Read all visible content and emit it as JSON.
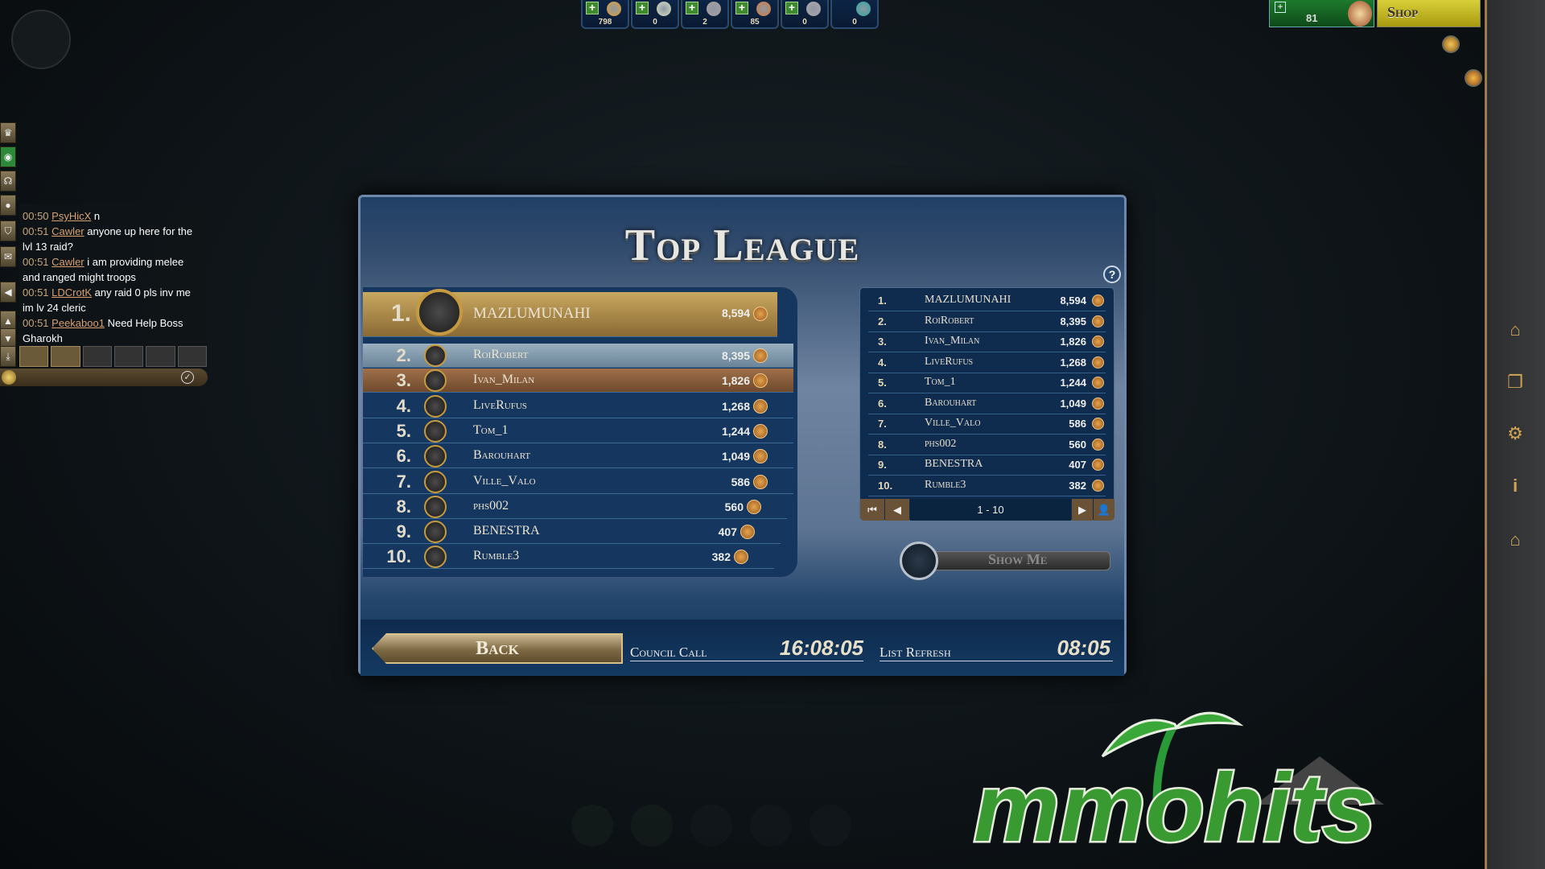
{
  "resources": [
    {
      "icon": "gold-coin-icon",
      "value": "798"
    },
    {
      "icon": "crystal-icon",
      "value": "0"
    },
    {
      "icon": "stone-icon",
      "value": "2"
    },
    {
      "icon": "wood-icon",
      "value": "85"
    },
    {
      "icon": "ore-icon",
      "value": "0"
    },
    {
      "icon": "gem-icon",
      "value": "0"
    }
  ],
  "top_right": {
    "rubies": "81",
    "shop_label": "Shop"
  },
  "chat": {
    "messages": [
      {
        "time": "00:50",
        "user": "PsyHicX",
        "text": "n"
      },
      {
        "time": "00:51",
        "user": "Cawler",
        "text": "anyone up here for the lvl 13 raid?"
      },
      {
        "time": "00:51",
        "user": "Cawler",
        "text": "i am providing melee and ranged might troops"
      },
      {
        "time": "00:51",
        "user": "LDCrotK",
        "text": "any raid 0 pls inv me im lv 24 cleric"
      },
      {
        "time": "00:51",
        "user": "Peekaboo1",
        "text": "Need Help Boss Gharokh"
      }
    ]
  },
  "modal": {
    "title": "Top League",
    "help": "?",
    "leaders": [
      {
        "rank": "1.",
        "name": "MAZLUMUNAHI",
        "score": "8,594"
      },
      {
        "rank": "2.",
        "name": "RoiRobert",
        "score": "8,395"
      },
      {
        "rank": "3.",
        "name": "Ivan_Milan",
        "score": "1,826"
      },
      {
        "rank": "4.",
        "name": "LiveRufus",
        "score": "1,268"
      },
      {
        "rank": "5.",
        "name": "Tom_1",
        "score": "1,244"
      },
      {
        "rank": "6.",
        "name": "Barouhart",
        "score": "1,049"
      },
      {
        "rank": "7.",
        "name": "Ville_Valo",
        "score": "586"
      },
      {
        "rank": "8.",
        "name": "phs002",
        "score": "560"
      },
      {
        "rank": "9.",
        "name": "BENESTRA",
        "score": "407"
      },
      {
        "rank": "10.",
        "name": "Rumble3",
        "score": "382"
      }
    ],
    "pagination": {
      "range": "1 - 10"
    },
    "show_me_label": "Show Me",
    "back_label": "Back",
    "council_call_label": "Council Call",
    "council_call_time": "16:08:05",
    "list_refresh_label": "List Refresh",
    "list_refresh_time": "08:05"
  },
  "watermark": "mmohits",
  "colors": {
    "gold_row": "#a98a4a",
    "silver_row": "#7f98aa",
    "bronze_row": "#8a5f3c",
    "panel_blue": "#15365e",
    "accent_green": "#3a9a32"
  }
}
